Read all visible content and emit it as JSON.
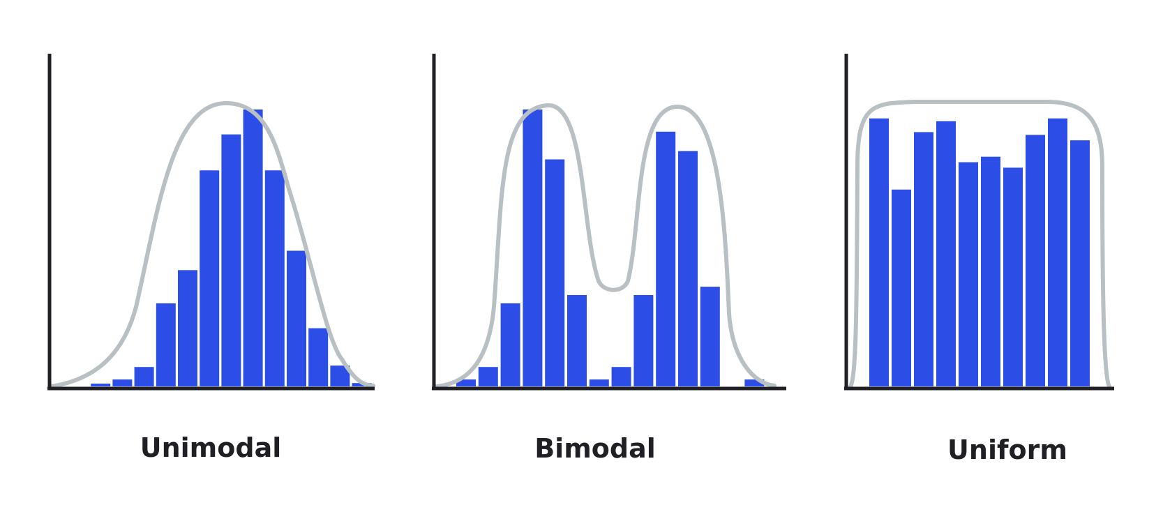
{
  "colors": {
    "bar": "#2c4de6",
    "curve": "#b9c0c4",
    "axis": "#1f1f24",
    "title": "#1f1f24"
  },
  "chart_data": [
    {
      "type": "bar",
      "title": "Unimodal",
      "xlabel": "",
      "ylabel": "",
      "grid": false,
      "ylim": [
        0,
        100
      ],
      "curve": "unimodal",
      "values": [
        0,
        1,
        2.5,
        7,
        30,
        42,
        78,
        91,
        100,
        78,
        49,
        21,
        7.5,
        1.2
      ]
    },
    {
      "type": "bar",
      "title": "Bimodal",
      "xlabel": "",
      "ylabel": "",
      "grid": false,
      "ylim": [
        0,
        100
      ],
      "curve": "bimodal",
      "values": [
        2.5,
        7,
        30,
        100,
        82,
        33,
        2.5,
        7,
        33,
        92,
        85,
        36,
        0,
        2.5
      ]
    },
    {
      "type": "bar",
      "title": "Uniform",
      "xlabel": "",
      "ylabel": "",
      "grid": false,
      "ylim": [
        0,
        100
      ],
      "curve": "uniform",
      "values": [
        98,
        72,
        93,
        97,
        82,
        84,
        80,
        92,
        98,
        90
      ]
    }
  ]
}
